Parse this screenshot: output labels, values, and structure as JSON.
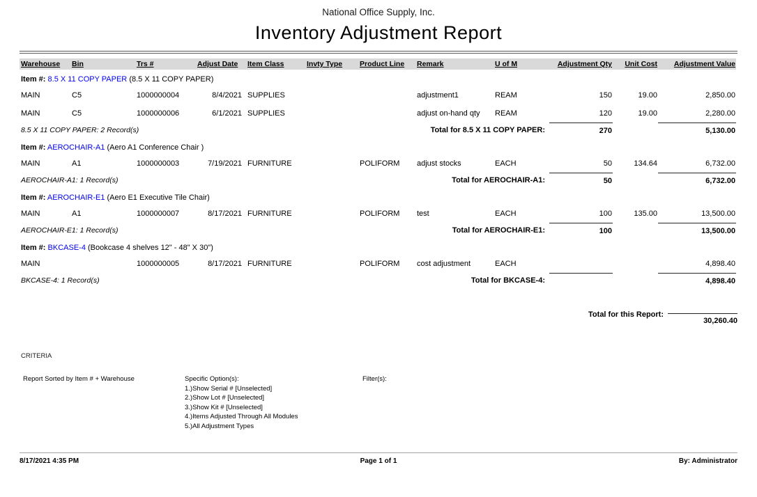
{
  "report": {
    "company": "National Office Supply, Inc.",
    "title": "Inventory Adjustment Report"
  },
  "columns": [
    "Warehouse",
    "Bin",
    "Trs #",
    "Adjust Date",
    "Item Class",
    "Invty Type",
    "Product Line",
    "Remark",
    "U of M",
    "Adjustment  Qty",
    "Unit Cost",
    "Adjustment Value"
  ],
  "labels": {
    "item_prefix": "Item #:"
  },
  "groups": [
    {
      "item_code": "8.5 X 11 COPY PAPER",
      "item_desc": "(8.5 X 11 COPY PAPER)",
      "rows": [
        {
          "warehouse": "MAIN",
          "bin": "C5",
          "trs": "1000000004",
          "adjust_date": "8/4/2021",
          "item_class": "SUPPLIES",
          "invty_type": "",
          "product_line": "",
          "remark": "adjustment1",
          "uofm": "REAM",
          "qty": "150",
          "unit_cost": "19.00",
          "value": "2,850.00"
        },
        {
          "warehouse": "MAIN",
          "bin": "C5",
          "trs": "1000000006",
          "adjust_date": "6/1/2021",
          "item_class": "SUPPLIES",
          "invty_type": "",
          "product_line": "",
          "remark": "adjust on-hand qty",
          "uofm": "REAM",
          "qty": "120",
          "unit_cost": "19.00",
          "value": "2,280.00"
        }
      ],
      "record_count": "8.5 X 11 COPY PAPER: 2 Record(s)",
      "total_label": "Total for 8.5 X 11 COPY PAPER:",
      "total_qty": "270",
      "total_value": "5,130.00"
    },
    {
      "item_code": "AEROCHAIR-A1",
      "item_desc": "(Aero A1 Conference Chair )",
      "rows": [
        {
          "warehouse": "MAIN",
          "bin": "A1",
          "trs": "1000000003",
          "adjust_date": "7/19/2021",
          "item_class": "FURNITURE",
          "invty_type": "",
          "product_line": "POLIFORM",
          "remark": "adjust stocks",
          "uofm": "EACH",
          "qty": "50",
          "unit_cost": "134.64",
          "value": "6,732.00"
        }
      ],
      "record_count": "AEROCHAIR-A1: 1 Record(s)",
      "total_label": "Total for AEROCHAIR-A1:",
      "total_qty": "50",
      "total_value": "6,732.00"
    },
    {
      "item_code": "AEROCHAIR-E1",
      "item_desc": "(Aero E1 Executive Tile Chair)",
      "rows": [
        {
          "warehouse": "MAIN",
          "bin": "A1",
          "trs": "1000000007",
          "adjust_date": "8/17/2021",
          "item_class": "FURNITURE",
          "invty_type": "",
          "product_line": "POLIFORM",
          "remark": "test",
          "uofm": "EACH",
          "qty": "100",
          "unit_cost": "135.00",
          "value": "13,500.00"
        }
      ],
      "record_count": "AEROCHAIR-E1: 1 Record(s)",
      "total_label": "Total for AEROCHAIR-E1:",
      "total_qty": "100",
      "total_value": "13,500.00"
    },
    {
      "item_code": "BKCASE-4",
      "item_desc": "(Bookcase 4 shelves 12\" - 48\" X 30\")",
      "rows": [
        {
          "warehouse": "MAIN",
          "bin": "",
          "trs": "1000000005",
          "adjust_date": "8/17/2021",
          "item_class": "FURNITURE",
          "invty_type": "",
          "product_line": "POLIFORM",
          "remark": "cost adjustment",
          "uofm": "EACH",
          "qty": "",
          "unit_cost": "",
          "value": "4,898.40"
        }
      ],
      "record_count": "BKCASE-4: 1 Record(s)",
      "total_label": "Total for BKCASE-4:",
      "total_qty": "",
      "total_value": "4,898.40"
    }
  ],
  "report_total": {
    "label": "Total for this Report:",
    "value": "30,260.40"
  },
  "criteria": {
    "heading": "CRITERIA",
    "sort": "Report Sorted by Item # + Warehouse",
    "options_label": "Specific Option(s):",
    "options": [
      "1.)Show Serial # [Unselected]",
      "2.)Show Lot # [Unselected]",
      "3.)Show Kit # [Unselected]",
      "4.)Items Adjusted Through All Modules",
      "5.)All Adjustment Types"
    ],
    "filters_label": "Filter(s):"
  },
  "footer": {
    "datetime": "8/17/2021 4:35 PM",
    "page": "Page 1 of 1",
    "by": "By: Administrator"
  }
}
